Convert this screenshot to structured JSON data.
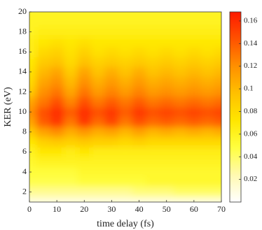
{
  "chart_data": {
    "type": "heatmap",
    "xlabel": "time delay (fs)",
    "ylabel": "KER (eV)",
    "x": [
      0,
      5,
      10,
      15,
      20,
      25,
      30,
      35,
      40,
      45,
      50,
      55,
      60,
      65,
      70
    ],
    "y": [
      1,
      2,
      3,
      4,
      5,
      6,
      7,
      8,
      9,
      10,
      11,
      12,
      13,
      14,
      15,
      16,
      17,
      18,
      19,
      20
    ],
    "values": [
      [
        0.01,
        0.01,
        0.01,
        0.01,
        0.01,
        0.01,
        0.01,
        0.01,
        0.01,
        0.01,
        0.01,
        0.01,
        0.01,
        0.01,
        0.01
      ],
      [
        0.03,
        0.03,
        0.03,
        0.03,
        0.03,
        0.03,
        0.03,
        0.03,
        0.035,
        0.035,
        0.035,
        0.04,
        0.04,
        0.04,
        0.04
      ],
      [
        0.045,
        0.045,
        0.045,
        0.045,
        0.05,
        0.05,
        0.05,
        0.05,
        0.05,
        0.055,
        0.055,
        0.055,
        0.055,
        0.055,
        0.055
      ],
      [
        0.05,
        0.05,
        0.05,
        0.05,
        0.055,
        0.055,
        0.055,
        0.055,
        0.055,
        0.055,
        0.055,
        0.055,
        0.055,
        0.055,
        0.055
      ],
      [
        0.055,
        0.06,
        0.06,
        0.06,
        0.06,
        0.06,
        0.06,
        0.06,
        0.06,
        0.06,
        0.06,
        0.06,
        0.06,
        0.06,
        0.06
      ],
      [
        0.06,
        0.07,
        0.07,
        0.065,
        0.07,
        0.065,
        0.065,
        0.065,
        0.065,
        0.065,
        0.065,
        0.065,
        0.065,
        0.065,
        0.065
      ],
      [
        0.07,
        0.085,
        0.09,
        0.085,
        0.09,
        0.085,
        0.085,
        0.08,
        0.085,
        0.08,
        0.08,
        0.08,
        0.08,
        0.08,
        0.08
      ],
      [
        0.09,
        0.11,
        0.12,
        0.105,
        0.115,
        0.105,
        0.11,
        0.1,
        0.11,
        0.1,
        0.105,
        0.1,
        0.105,
        0.1,
        0.105
      ],
      [
        0.11,
        0.14,
        0.155,
        0.13,
        0.155,
        0.135,
        0.15,
        0.13,
        0.145,
        0.135,
        0.14,
        0.135,
        0.14,
        0.135,
        0.14
      ],
      [
        0.12,
        0.145,
        0.16,
        0.14,
        0.16,
        0.145,
        0.155,
        0.14,
        0.155,
        0.145,
        0.15,
        0.145,
        0.15,
        0.145,
        0.15
      ],
      [
        0.11,
        0.13,
        0.145,
        0.125,
        0.145,
        0.13,
        0.14,
        0.13,
        0.14,
        0.13,
        0.135,
        0.13,
        0.135,
        0.13,
        0.135
      ],
      [
        0.09,
        0.12,
        0.13,
        0.11,
        0.13,
        0.115,
        0.125,
        0.115,
        0.125,
        0.115,
        0.12,
        0.115,
        0.12,
        0.115,
        0.12
      ],
      [
        0.08,
        0.11,
        0.12,
        0.1,
        0.12,
        0.105,
        0.115,
        0.105,
        0.115,
        0.105,
        0.11,
        0.105,
        0.11,
        0.105,
        0.11
      ],
      [
        0.075,
        0.1,
        0.11,
        0.09,
        0.11,
        0.095,
        0.105,
        0.095,
        0.105,
        0.095,
        0.1,
        0.095,
        0.1,
        0.095,
        0.1
      ],
      [
        0.07,
        0.09,
        0.095,
        0.08,
        0.095,
        0.085,
        0.09,
        0.085,
        0.09,
        0.085,
        0.09,
        0.085,
        0.09,
        0.085,
        0.09
      ],
      [
        0.065,
        0.08,
        0.085,
        0.075,
        0.085,
        0.075,
        0.08,
        0.075,
        0.08,
        0.075,
        0.08,
        0.075,
        0.08,
        0.075,
        0.08
      ],
      [
        0.065,
        0.07,
        0.075,
        0.07,
        0.075,
        0.07,
        0.07,
        0.07,
        0.07,
        0.07,
        0.07,
        0.07,
        0.07,
        0.07,
        0.07
      ],
      [
        0.06,
        0.065,
        0.065,
        0.065,
        0.065,
        0.065,
        0.065,
        0.065,
        0.065,
        0.065,
        0.065,
        0.065,
        0.065,
        0.065,
        0.065
      ],
      [
        0.06,
        0.06,
        0.06,
        0.06,
        0.06,
        0.06,
        0.06,
        0.06,
        0.06,
        0.06,
        0.06,
        0.06,
        0.06,
        0.06,
        0.06
      ],
      [
        0.06,
        0.06,
        0.06,
        0.06,
        0.06,
        0.06,
        0.06,
        0.06,
        0.06,
        0.06,
        0.06,
        0.06,
        0.06,
        0.06,
        0.06
      ]
    ],
    "xlim": [
      0,
      70
    ],
    "ylim": [
      1,
      20
    ],
    "xticks": [
      0,
      10,
      20,
      30,
      40,
      50,
      60,
      70
    ],
    "yticks": [
      2,
      4,
      6,
      8,
      10,
      12,
      14,
      16,
      18,
      20
    ],
    "clim": [
      0,
      0.168
    ],
    "cticks": [
      0.02,
      0.04,
      0.06,
      0.08,
      0.1,
      0.12,
      0.14,
      0.16
    ],
    "colormap": [
      "#ffffff",
      "#fff9b0",
      "#ffff40",
      "#ffe600",
      "#ffc000",
      "#ff9000",
      "#ff5200",
      "#ff1a00"
    ]
  }
}
